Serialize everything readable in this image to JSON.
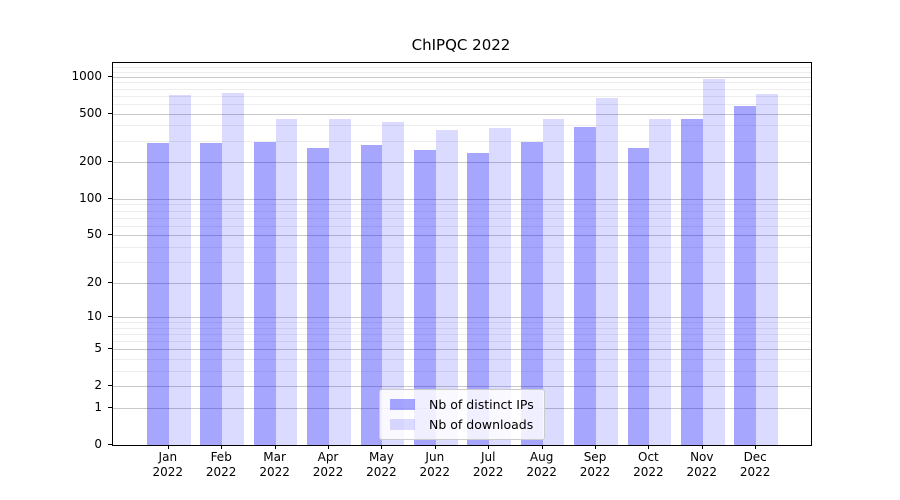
{
  "chart_data": {
    "type": "bar",
    "title": "ChIPQC 2022",
    "categories": [
      "Jan",
      "Feb",
      "Mar",
      "Apr",
      "May",
      "Jun",
      "Jul",
      "Aug",
      "Sep",
      "Oct",
      "Nov",
      "Dec"
    ],
    "category_year": "2022",
    "series": [
      {
        "name": "Nb of distinct IPs",
        "key": "distinct-ips",
        "color": "rgba(0,0,255,0.35)",
        "color_hex_on_white": "#a6a6ff",
        "values": [
          288,
          288,
          292,
          262,
          277,
          254,
          240,
          293,
          385,
          263,
          455,
          578
        ]
      },
      {
        "name": "Nb of downloads",
        "key": "downloads",
        "color": "rgba(0,0,255,0.14)",
        "color_hex_on_white": "#dcdcff",
        "values": [
          710,
          730,
          450,
          450,
          430,
          370,
          380,
          455,
          675,
          450,
          950,
          715
        ]
      }
    ],
    "yscale": "log1p",
    "ylim": [
      0,
      1290
    ],
    "yticks": [
      0,
      1,
      2,
      5,
      10,
      20,
      50,
      100,
      200,
      500,
      1000
    ],
    "yminor": [
      3,
      4,
      6,
      7,
      8,
      9,
      30,
      40,
      60,
      70,
      80,
      90,
      300,
      400,
      600,
      700,
      800,
      900,
      1100,
      1200
    ],
    "grid": "on",
    "legend_position": "lower center",
    "colors": {
      "major_grid": "#c9c9c9",
      "minor_grid": "#ededed",
      "axis": "#000000",
      "text": "#000000",
      "background": "#ffffff"
    }
  }
}
